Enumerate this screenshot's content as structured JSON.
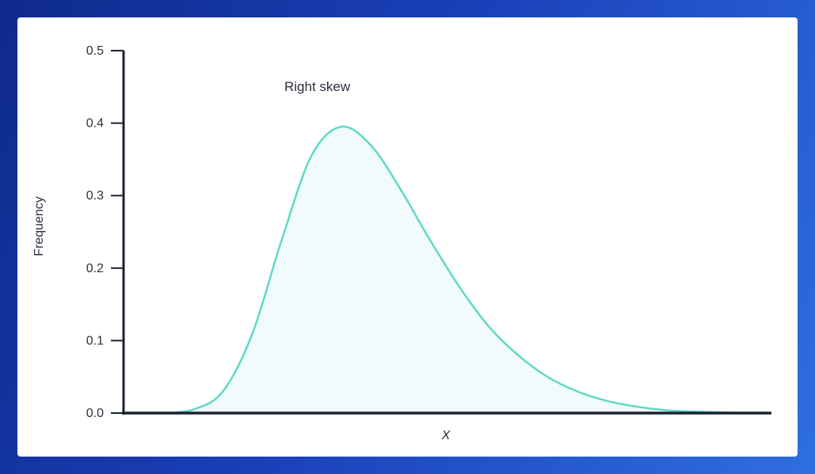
{
  "chart_data": {
    "type": "area",
    "title": "",
    "annotation": "Right skew",
    "xlabel": "X",
    "ylabel": "Frequency",
    "ylim": [
      0,
      0.5
    ],
    "yticks": [
      "0.0",
      "0.1",
      "0.2",
      "0.3",
      "0.4",
      "0.5"
    ],
    "grid": false,
    "series": [
      {
        "x": [
          0,
          0.5,
          1,
          1.5,
          2,
          2.5,
          3,
          3.5,
          4,
          4.5,
          5,
          5.5,
          6,
          6.5,
          7,
          7.5,
          8,
          8.5,
          9,
          9.5,
          10
        ],
        "values": [
          0.0,
          0.005,
          0.03,
          0.11,
          0.24,
          0.355,
          0.395,
          0.37,
          0.31,
          0.24,
          0.175,
          0.12,
          0.08,
          0.05,
          0.03,
          0.017,
          0.009,
          0.004,
          0.002,
          0.001,
          0.0
        ]
      }
    ],
    "colors": {
      "line": "#5ed9c7",
      "fill": "#f1fbfb",
      "axis": "#1d2233"
    }
  }
}
